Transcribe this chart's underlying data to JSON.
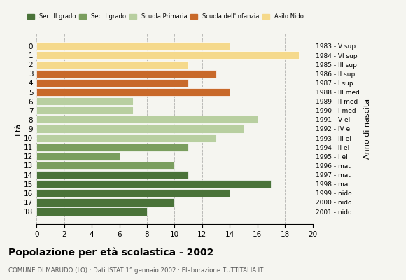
{
  "ages": [
    18,
    17,
    16,
    15,
    14,
    13,
    12,
    11,
    10,
    9,
    8,
    7,
    6,
    5,
    4,
    3,
    2,
    1,
    0
  ],
  "values": [
    8,
    10,
    14,
    17,
    11,
    10,
    6,
    11,
    13,
    15,
    16,
    7,
    7,
    14,
    11,
    13,
    11,
    19,
    14
  ],
  "right_labels": [
    "1983 - V sup",
    "1984 - VI sup",
    "1985 - III sup",
    "1986 - II sup",
    "1987 - I sup",
    "1988 - III med",
    "1989 - II med",
    "1990 - I med",
    "1991 - V el",
    "1992 - IV el",
    "1993 - III el",
    "1994 - II el",
    "1995 - I el",
    "1996 - mat",
    "1997 - mat",
    "1998 - mat",
    "1999 - nido",
    "2000 - nido",
    "2001 - nido"
  ],
  "colors": [
    "#4a7339",
    "#4a7339",
    "#4a7339",
    "#4a7339",
    "#4a7339",
    "#7a9e5e",
    "#7a9e5e",
    "#7a9e5e",
    "#b8cfa0",
    "#b8cfa0",
    "#b8cfa0",
    "#b8cfa0",
    "#b8cfa0",
    "#c8692a",
    "#c8692a",
    "#c8692a",
    "#f5d98b",
    "#f5d98b",
    "#f5d98b"
  ],
  "legend_labels": [
    "Sec. II grado",
    "Sec. I grado",
    "Scuola Primaria",
    "Scuola dell'Infanzia",
    "Asilo Nido"
  ],
  "legend_colors": [
    "#4a7339",
    "#7a9e5e",
    "#b8cfa0",
    "#c8692a",
    "#f5d98b"
  ],
  "title": "Popolazione per età scolastica - 2002",
  "subtitle": "COMUNE DI MARUDO (LO) · Dati ISTAT 1° gennaio 2002 · Elaborazione TUTTITALIA.IT",
  "ylabel": "Età",
  "right_axis_label": "Anno di nascita",
  "xlim": [
    0,
    20
  ],
  "background_color": "#f5f5f0",
  "bar_color_edge": "white"
}
